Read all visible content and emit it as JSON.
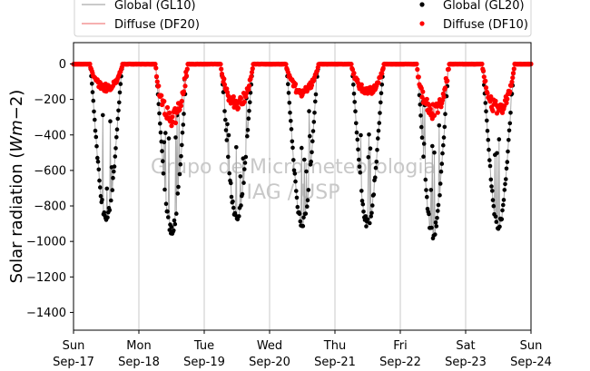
{
  "chart_data": {
    "type": "scatter",
    "title": "",
    "xlabel": "",
    "ylabel": "Solar radiation ($Wm{-2}$)",
    "ylabel_parts": {
      "main": "Solar radiation (",
      "math": "Wm",
      "minus": "−2",
      "close": ")"
    },
    "watermark": [
      "Grupo de Micrometeorologia",
      "IAG / USP"
    ],
    "ylim": [
      -1500,
      120
    ],
    "yticks": [
      0,
      -200,
      -400,
      -600,
      -800,
      -1000,
      -1200,
      -1400
    ],
    "xlim_days": [
      0,
      7
    ],
    "xticks": [
      {
        "day": "Sun",
        "date": "Sep-17"
      },
      {
        "day": "Mon",
        "date": "Sep-18"
      },
      {
        "day": "Tue",
        "date": "Sep-19"
      },
      {
        "day": "Wed",
        "date": "Sep-20"
      },
      {
        "day": "Thu",
        "date": "Sep-21"
      },
      {
        "day": "Fri",
        "date": "Sep-22"
      },
      {
        "day": "Sat",
        "date": "Sep-23"
      },
      {
        "day": "Sun",
        "date": "Sep-24"
      }
    ],
    "grid": "x-major",
    "legend_placement": "top, above plot",
    "legend": [
      {
        "label": "Global (GL10)",
        "style": "line",
        "color": "#aaaaaa"
      },
      {
        "label": "Global (GL20)",
        "style": "marker",
        "color": "#000000"
      },
      {
        "label": "Diffuse (DF20)",
        "style": "line",
        "color": "#f08080"
      },
      {
        "label": "Diffuse (DF10)",
        "style": "marker",
        "color": "#ff0000"
      }
    ],
    "days": [
      {
        "date": "Sep-17",
        "sunrise_h": 6.0,
        "sunset_h": 18.0,
        "global_min": -880,
        "diffuse_min": -150,
        "cloudy": 0.2
      },
      {
        "date": "Sep-18",
        "sunrise_h": 6.0,
        "sunset_h": 18.0,
        "global_min": -950,
        "diffuse_min": -340,
        "cloudy": 0.6
      },
      {
        "date": "Sep-19",
        "sunrise_h": 6.0,
        "sunset_h": 18.0,
        "global_min": -880,
        "diffuse_min": -250,
        "cloudy": 0.15
      },
      {
        "date": "Sep-20",
        "sunrise_h": 6.0,
        "sunset_h": 18.0,
        "global_min": -910,
        "diffuse_min": -175,
        "cloudy": 0.1
      },
      {
        "date": "Sep-21",
        "sunrise_h": 6.0,
        "sunset_h": 18.0,
        "global_min": -910,
        "diffuse_min": -175,
        "cloudy": 0.15
      },
      {
        "date": "Sep-22",
        "sunrise_h": 6.0,
        "sunset_h": 18.0,
        "global_min": -970,
        "diffuse_min": -300,
        "cloudy": 0.55
      },
      {
        "date": "Sep-23",
        "sunrise_h": 6.0,
        "sunset_h": 18.0,
        "global_min": -920,
        "diffuse_min": -280,
        "cloudy": 0.35
      }
    ],
    "colors": {
      "global_line": "#aaaaaa",
      "global_marker": "#000000",
      "diffuse_line": "#f08080",
      "diffuse_marker": "#ff0000",
      "grid": "#c8c8c8"
    }
  }
}
